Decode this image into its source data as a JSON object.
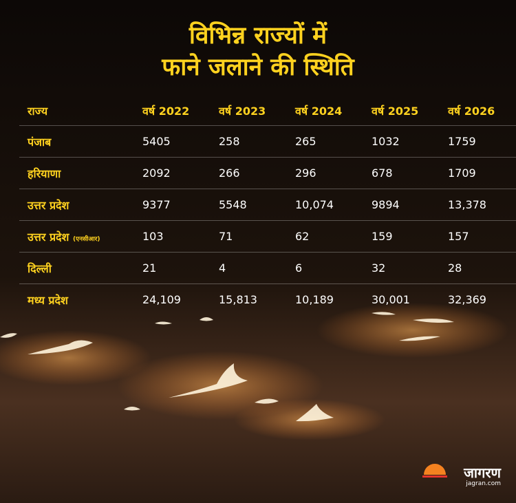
{
  "title": [
    "विभिन्न राज्यों में",
    "फाने जलाने की स्थिति"
  ],
  "table": {
    "header": [
      "राज्य",
      "वर्ष 2022",
      "वर्ष 2023",
      "वर्ष 2024",
      "वर्ष 2025",
      "वर्ष 2026"
    ],
    "rows": [
      {
        "state": "पंजाब",
        "values": [
          "5405",
          "258",
          "265",
          "1032",
          "1759"
        ]
      },
      {
        "state": "हरियाणा",
        "values": [
          "2092",
          "266",
          "296",
          "678",
          "1709"
        ]
      },
      {
        "state": "उत्तर प्रदेश",
        "values": [
          "9377",
          "5548",
          "10,074",
          "9894",
          "13,378"
        ]
      },
      {
        "state": "उत्तर प्रदेश",
        "note": "(एनसीआर)",
        "values": [
          "103",
          "71",
          "62",
          "159",
          "157"
        ]
      },
      {
        "state": "दिल्ली",
        "values": [
          "21",
          "4",
          "6",
          "32",
          "28"
        ]
      },
      {
        "state": "मध्य प्रदेश",
        "values": [
          "24,109",
          "15,813",
          "10,189",
          "30,001",
          "32,369"
        ]
      }
    ]
  },
  "logo": {
    "name": "जागरण",
    "site": "jagran.com"
  }
}
